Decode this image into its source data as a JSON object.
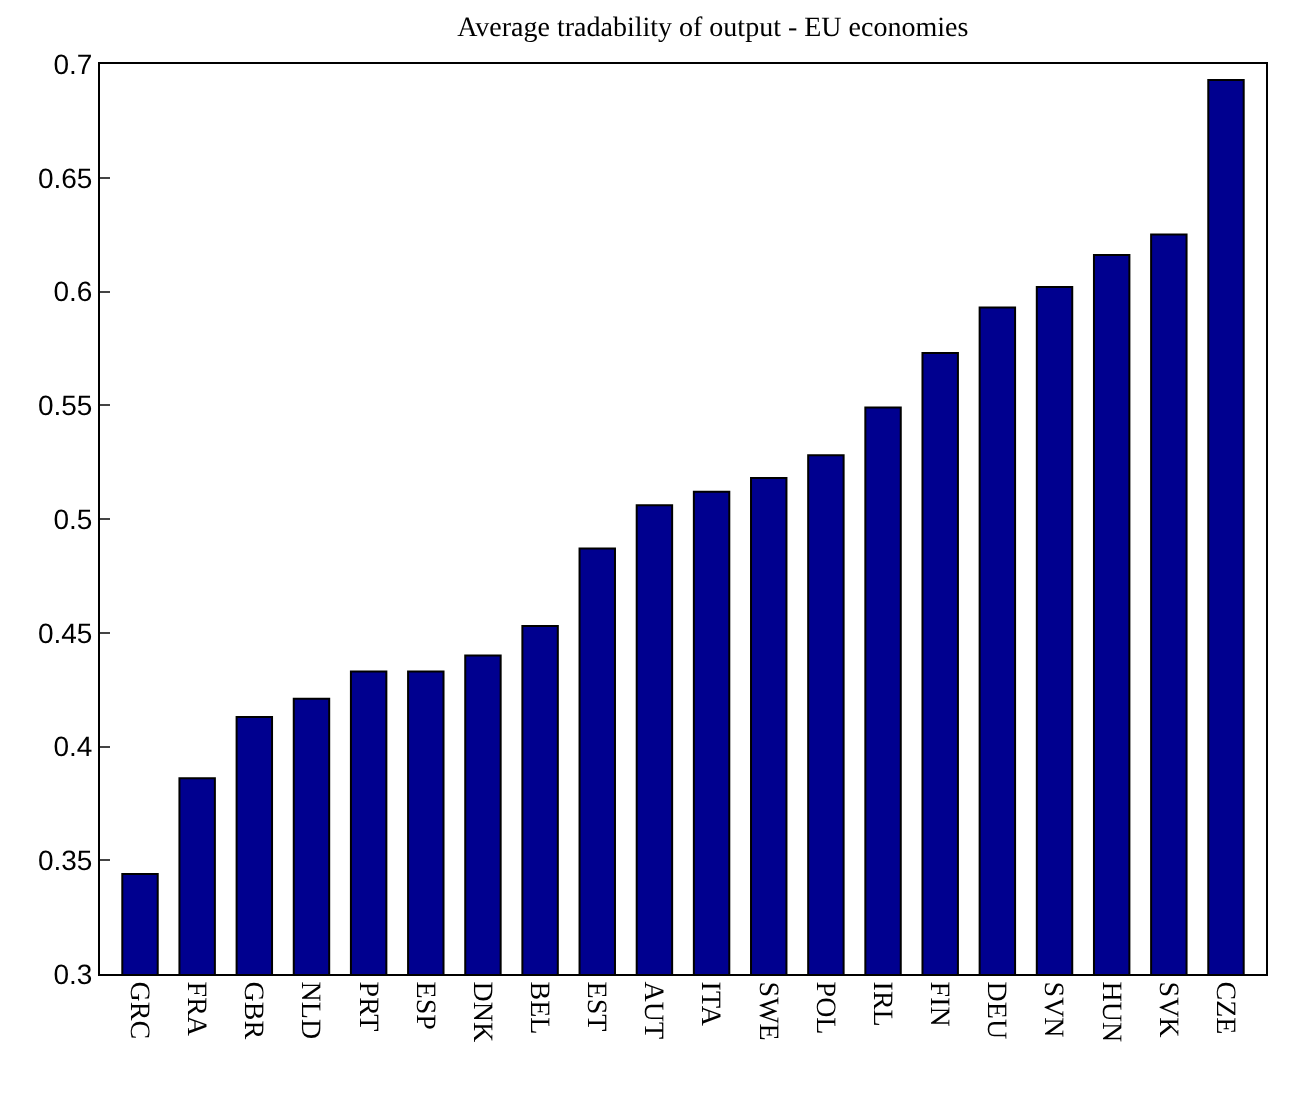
{
  "chart_data": {
    "type": "bar",
    "title": "Average tradability of output - EU economies",
    "categories": [
      "GRC",
      "FRA",
      "GBR",
      "NLD",
      "PRT",
      "ESP",
      "DNK",
      "BEL",
      "EST",
      "AUT",
      "ITA",
      "SWE",
      "POL",
      "IRL",
      "FIN",
      "DEU",
      "SVN",
      "HUN",
      "SVK",
      "CZE"
    ],
    "values": [
      0.344,
      0.386,
      0.413,
      0.421,
      0.433,
      0.433,
      0.44,
      0.453,
      0.487,
      0.506,
      0.512,
      0.518,
      0.528,
      0.549,
      0.573,
      0.593,
      0.602,
      0.616,
      0.625,
      0.693
    ],
    "color": "#00008f",
    "ylim": [
      0.3,
      0.7
    ],
    "yticks": [
      0.3,
      0.35,
      0.4,
      0.45,
      0.5,
      0.55,
      0.6,
      0.65,
      0.7
    ]
  }
}
